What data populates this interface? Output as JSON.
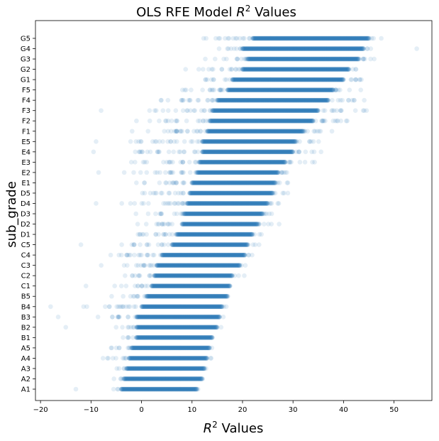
{
  "chart_data": {
    "type": "scatter",
    "title_main": "OLS RFE Model ",
    "title_math": "R",
    "title_sup": "2",
    "title_tail": " Values",
    "xlabel_math": "R",
    "xlabel_sup": "2",
    "xlabel_tail": " Values",
    "ylabel": "sub_grade",
    "xlim": [
      -21,
      57.5
    ],
    "xticks": [
      -20,
      -10,
      0,
      10,
      20,
      30,
      40,
      50
    ],
    "marker_color": "#1f77b4",
    "marker_alpha": 0.12,
    "grid": false,
    "legend": "none",
    "categories": [
      "A1",
      "A2",
      "A3",
      "A4",
      "A5",
      "B1",
      "B2",
      "B3",
      "B4",
      "B5",
      "C1",
      "C2",
      "C3",
      "C4",
      "C5",
      "D1",
      "D2",
      "D3",
      "D4",
      "D5",
      "E1",
      "E2",
      "E3",
      "E4",
      "E5",
      "F1",
      "F2",
      "F3",
      "F4",
      "F5",
      "G1",
      "G2",
      "G3",
      "G4",
      "G5"
    ],
    "series": [
      {
        "category": "A1",
        "dense_range": [
          -4,
          11
        ],
        "sparse_range": [
          -7,
          12
        ],
        "outliers": [
          -13
        ]
      },
      {
        "category": "A2",
        "dense_range": [
          -3.5,
          12
        ],
        "sparse_range": [
          -6.5,
          13
        ],
        "outliers": []
      },
      {
        "category": "A3",
        "dense_range": [
          -3,
          12.5
        ],
        "sparse_range": [
          -6,
          13.5
        ],
        "outliers": []
      },
      {
        "category": "A4",
        "dense_range": [
          -2.5,
          13
        ],
        "sparse_range": [
          -9.5,
          14.5
        ],
        "outliers": []
      },
      {
        "category": "A5",
        "dense_range": [
          -2,
          13.5
        ],
        "sparse_range": [
          -8,
          14.5
        ],
        "outliers": []
      },
      {
        "category": "B1",
        "dense_range": [
          -1,
          14
        ],
        "sparse_range": [
          -5.5,
          14.5
        ],
        "outliers": []
      },
      {
        "category": "B2",
        "dense_range": [
          -1,
          15
        ],
        "sparse_range": [
          -6.5,
          16
        ],
        "outliers": [
          -15
        ]
      },
      {
        "category": "B3",
        "dense_range": [
          -1,
          15.5
        ],
        "sparse_range": [
          -9.5,
          16.5
        ],
        "outliers": [
          -16.5
        ]
      },
      {
        "category": "B4",
        "dense_range": [
          0,
          16
        ],
        "sparse_range": [
          -12,
          17.5
        ],
        "outliers": [
          -18
        ]
      },
      {
        "category": "B5",
        "dense_range": [
          1,
          17
        ],
        "sparse_range": [
          -6.5,
          18
        ],
        "outliers": []
      },
      {
        "category": "C1",
        "dense_range": [
          2,
          17.5
        ],
        "sparse_range": [
          -7.5,
          18.5
        ],
        "outliers": [
          -11
        ]
      },
      {
        "category": "C2",
        "dense_range": [
          2.5,
          18
        ],
        "sparse_range": [
          -5,
          20.5
        ],
        "outliers": []
      },
      {
        "category": "C3",
        "dense_range": [
          3,
          19.5
        ],
        "sparse_range": [
          -8.5,
          21
        ],
        "outliers": []
      },
      {
        "category": "C4",
        "dense_range": [
          4,
          20.5
        ],
        "sparse_range": [
          -10,
          22.5
        ],
        "outliers": []
      },
      {
        "category": "C5",
        "dense_range": [
          6,
          21
        ],
        "sparse_range": [
          -4.5,
          24
        ],
        "outliers": [
          -12
        ]
      },
      {
        "category": "D1",
        "dense_range": [
          7,
          22
        ],
        "sparse_range": [
          -6,
          24.5
        ],
        "outliers": []
      },
      {
        "category": "D2",
        "dense_range": [
          8,
          23
        ],
        "sparse_range": [
          -2,
          28
        ],
        "outliers": []
      },
      {
        "category": "D3",
        "dense_range": [
          8.5,
          24
        ],
        "sparse_range": [
          -2.5,
          27.5
        ],
        "outliers": []
      },
      {
        "category": "D4",
        "dense_range": [
          9,
          25
        ],
        "sparse_range": [
          -5.5,
          29
        ],
        "outliers": [
          -9
        ]
      },
      {
        "category": "D5",
        "dense_range": [
          9.5,
          26
        ],
        "sparse_range": [
          -2,
          29.5
        ],
        "outliers": []
      },
      {
        "category": "E1",
        "dense_range": [
          10,
          26.5
        ],
        "sparse_range": [
          -3,
          30.5
        ],
        "outliers": []
      },
      {
        "category": "E2",
        "dense_range": [
          11,
          27
        ],
        "sparse_range": [
          -4,
          33.5
        ],
        "outliers": [
          -8.5
        ]
      },
      {
        "category": "E3",
        "dense_range": [
          11.5,
          28.5
        ],
        "sparse_range": [
          -4,
          35
        ],
        "outliers": []
      },
      {
        "category": "E4",
        "dense_range": [
          12,
          30
        ],
        "sparse_range": [
          -4,
          36
        ],
        "outliers": [
          -9.5
        ]
      },
      {
        "category": "E5",
        "dense_range": [
          12,
          30.5
        ],
        "sparse_range": [
          -3.5,
          36.5
        ],
        "outliers": [
          -9
        ]
      },
      {
        "category": "F1",
        "dense_range": [
          13,
          32
        ],
        "sparse_range": [
          -4,
          40
        ],
        "outliers": []
      },
      {
        "category": "F2",
        "dense_range": [
          13.5,
          34
        ],
        "sparse_range": [
          1,
          45
        ],
        "outliers": [
          -1
        ]
      },
      {
        "category": "F3",
        "dense_range": [
          14,
          35
        ],
        "sparse_range": [
          1,
          45
        ],
        "outliers": [
          -8
        ]
      },
      {
        "category": "F4",
        "dense_range": [
          15,
          37
        ],
        "sparse_range": [
          1,
          45
        ],
        "outliers": []
      },
      {
        "category": "F5",
        "dense_range": [
          17,
          38
        ],
        "sparse_range": [
          5,
          44
        ],
        "outliers": []
      },
      {
        "category": "G1",
        "dense_range": [
          18,
          40
        ],
        "sparse_range": [
          10,
          46
        ],
        "outliers": []
      },
      {
        "category": "G2",
        "dense_range": [
          20,
          41
        ],
        "sparse_range": [
          8,
          45
        ],
        "outliers": []
      },
      {
        "category": "G3",
        "dense_range": [
          21,
          43
        ],
        "sparse_range": [
          12,
          48
        ],
        "outliers": []
      },
      {
        "category": "G4",
        "dense_range": [
          20,
          44
        ],
        "sparse_range": [
          13,
          46
        ],
        "outliers": [
          54.5
        ]
      },
      {
        "category": "G5",
        "dense_range": [
          22,
          45
        ],
        "sparse_range": [
          10,
          48
        ],
        "outliers": []
      }
    ]
  }
}
